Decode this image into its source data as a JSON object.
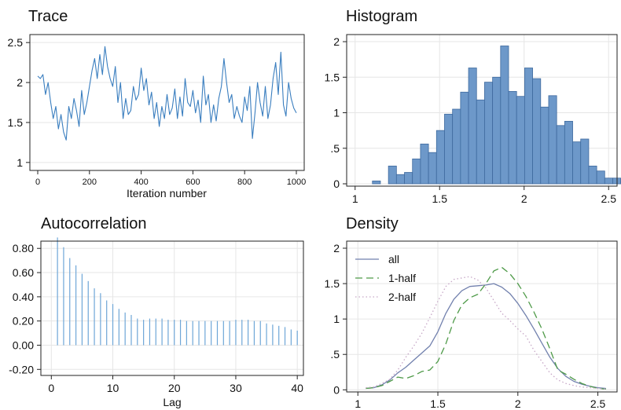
{
  "chart_data": [
    {
      "type": "line",
      "title": "Trace",
      "xlabel": "Iteration number",
      "ylabel": "",
      "xlim": [
        0,
        1000
      ],
      "ylim": [
        0.9,
        2.6
      ],
      "x_ticks": [
        0,
        200,
        400,
        600,
        800,
        1000
      ],
      "y_ticks": [
        1,
        1.5,
        2,
        2.5
      ],
      "y_tick_labels": [
        "1",
        "1.5",
        "2",
        "2.5"
      ],
      "grid": "horizontal",
      "color": "#3a7ebf",
      "x": [
        0,
        10,
        20,
        30,
        40,
        50,
        60,
        70,
        80,
        90,
        100,
        110,
        120,
        130,
        140,
        150,
        160,
        170,
        180,
        190,
        200,
        210,
        220,
        230,
        240,
        250,
        260,
        270,
        280,
        290,
        300,
        310,
        320,
        330,
        340,
        350,
        360,
        370,
        380,
        390,
        400,
        410,
        420,
        430,
        440,
        450,
        460,
        470,
        480,
        490,
        500,
        510,
        520,
        530,
        540,
        550,
        560,
        570,
        580,
        590,
        600,
        610,
        620,
        630,
        640,
        650,
        660,
        670,
        680,
        690,
        700,
        710,
        720,
        730,
        740,
        750,
        760,
        770,
        780,
        790,
        800,
        810,
        820,
        830,
        840,
        850,
        860,
        870,
        880,
        890,
        900,
        910,
        920,
        930,
        940,
        950,
        960,
        970,
        980,
        990,
        1000
      ],
      "values": [
        2.08,
        2.05,
        2.1,
        1.85,
        2.0,
        1.75,
        1.55,
        1.7,
        1.42,
        1.6,
        1.38,
        1.28,
        1.7,
        1.55,
        1.8,
        1.65,
        1.45,
        1.9,
        1.6,
        1.75,
        1.95,
        2.15,
        2.3,
        2.05,
        2.35,
        2.1,
        2.45,
        2.2,
        2.05,
        1.95,
        2.2,
        1.75,
        2.0,
        1.55,
        1.8,
        1.6,
        1.65,
        1.95,
        1.78,
        1.85,
        2.18,
        1.9,
        2.05,
        1.72,
        1.88,
        1.55,
        1.75,
        1.45,
        1.7,
        1.55,
        1.85,
        1.6,
        1.68,
        1.92,
        1.55,
        1.82,
        1.58,
        2.05,
        1.75,
        1.7,
        1.9,
        1.62,
        1.78,
        1.5,
        2.08,
        1.72,
        1.85,
        1.5,
        1.72,
        1.52,
        1.8,
        1.95,
        2.3,
        2.0,
        1.75,
        1.85,
        1.55,
        1.7,
        1.58,
        1.5,
        1.82,
        1.65,
        1.95,
        1.3,
        1.62,
        2.0,
        1.75,
        1.58,
        1.95,
        1.55,
        1.72,
        2.05,
        2.25,
        1.85,
        2.38,
        1.72,
        1.58,
        2.0,
        1.8,
        1.68,
        1.62
      ]
    },
    {
      "type": "bar",
      "title": "Histogram",
      "xlabel": "",
      "ylabel": "",
      "xlim": [
        0.95,
        2.55
      ],
      "ylim": [
        0,
        2.1
      ],
      "x_ticks": [
        1,
        1.5,
        2,
        2.5
      ],
      "x_tick_labels": [
        "1",
        "1.5",
        "2",
        "2.5"
      ],
      "y_ticks": [
        0,
        0.5,
        1,
        1.5,
        2
      ],
      "y_tick_labels": [
        "0",
        ".5",
        "1",
        "1.5",
        "2"
      ],
      "grid": "both",
      "color": "#6d98c9",
      "bin_start": 1.055,
      "bin_width": 0.0474,
      "values": [
        0.0,
        0.04,
        0.0,
        0.25,
        0.13,
        0.16,
        0.35,
        0.56,
        0.44,
        0.75,
        0.98,
        1.05,
        1.29,
        1.63,
        1.18,
        1.43,
        1.5,
        1.94,
        1.3,
        1.23,
        1.63,
        1.48,
        1.08,
        1.24,
        0.82,
        0.88,
        0.59,
        0.63,
        0.25,
        0.18,
        0.08,
        0.08,
        0.04
      ]
    },
    {
      "type": "bar",
      "title": "Autocorrelation",
      "xlabel": "Lag",
      "ylabel": "",
      "xlim": [
        -1.7,
        41
      ],
      "ylim": [
        -0.25,
        0.86
      ],
      "x_ticks": [
        0,
        10,
        20,
        30,
        40
      ],
      "y_ticks": [
        -0.2,
        0,
        0.2,
        0.4,
        0.6,
        0.8
      ],
      "y_tick_labels": [
        "-0.20",
        "0.00",
        "0.20",
        "0.40",
        "0.60",
        "0.80"
      ],
      "grid": "both",
      "color": "#6ea6d7",
      "x": [
        1,
        2,
        3,
        4,
        5,
        6,
        7,
        8,
        9,
        10,
        11,
        12,
        13,
        14,
        15,
        16,
        17,
        18,
        19,
        20,
        21,
        22,
        23,
        24,
        25,
        26,
        27,
        28,
        29,
        30,
        31,
        32,
        33,
        34,
        35,
        36,
        37,
        38,
        39,
        40
      ],
      "values": [
        0.89,
        0.81,
        0.72,
        0.66,
        0.59,
        0.53,
        0.47,
        0.43,
        0.37,
        0.34,
        0.3,
        0.27,
        0.25,
        0.22,
        0.21,
        0.22,
        0.22,
        0.22,
        0.21,
        0.21,
        0.21,
        0.2,
        0.2,
        0.2,
        0.2,
        0.2,
        0.2,
        0.2,
        0.2,
        0.21,
        0.21,
        0.21,
        0.2,
        0.2,
        0.18,
        0.17,
        0.16,
        0.15,
        0.13,
        0.12
      ]
    },
    {
      "type": "line",
      "title": "Density",
      "xlabel": "",
      "ylabel": "",
      "xlim": [
        0.93,
        2.62
      ],
      "ylim": [
        -0.03,
        2.1
      ],
      "x_ticks": [
        1,
        1.5,
        2,
        2.5
      ],
      "x_tick_labels": [
        "1",
        "1.5",
        "2",
        "2.5"
      ],
      "y_ticks": [
        0,
        0.5,
        1,
        1.5,
        2
      ],
      "y_tick_labels": [
        "0",
        ".5",
        "1",
        "1.5",
        "2"
      ],
      "grid": "both",
      "legend_position": "top-left",
      "x": [
        1.05,
        1.1,
        1.15,
        1.2,
        1.25,
        1.3,
        1.35,
        1.4,
        1.45,
        1.5,
        1.55,
        1.6,
        1.65,
        1.7,
        1.75,
        1.8,
        1.85,
        1.9,
        1.95,
        2.0,
        2.05,
        2.1,
        2.15,
        2.2,
        2.25,
        2.3,
        2.35,
        2.4,
        2.45,
        2.5,
        2.55
      ],
      "series": [
        {
          "name": "all",
          "color": "#7180ad",
          "dash": "solid",
          "values": [
            0.02,
            0.03,
            0.07,
            0.14,
            0.24,
            0.32,
            0.42,
            0.52,
            0.62,
            0.82,
            1.08,
            1.28,
            1.4,
            1.46,
            1.47,
            1.48,
            1.5,
            1.45,
            1.36,
            1.22,
            1.05,
            0.86,
            0.66,
            0.46,
            0.3,
            0.19,
            0.12,
            0.08,
            0.05,
            0.03,
            0.02
          ]
        },
        {
          "name": "1-half",
          "color": "#4e9a48",
          "dash": "9,5",
          "values": [
            0.02,
            0.03,
            0.06,
            0.12,
            0.18,
            0.16,
            0.2,
            0.26,
            0.28,
            0.4,
            0.65,
            0.98,
            1.2,
            1.3,
            1.35,
            1.5,
            1.68,
            1.73,
            1.64,
            1.5,
            1.32,
            1.1,
            0.86,
            0.58,
            0.28,
            0.22,
            0.15,
            0.09,
            0.05,
            0.02,
            0.01
          ]
        },
        {
          "name": "2-half",
          "color": "#c6a6c6",
          "dash": "1.5,3",
          "values": [
            0.03,
            0.04,
            0.09,
            0.15,
            0.28,
            0.46,
            0.62,
            0.8,
            1.02,
            1.25,
            1.46,
            1.56,
            1.58,
            1.6,
            1.55,
            1.44,
            1.26,
            1.08,
            0.98,
            0.86,
            0.76,
            0.56,
            0.4,
            0.24,
            0.14,
            0.09,
            0.06,
            0.04,
            0.03,
            0.02,
            0.01
          ]
        }
      ]
    }
  ]
}
